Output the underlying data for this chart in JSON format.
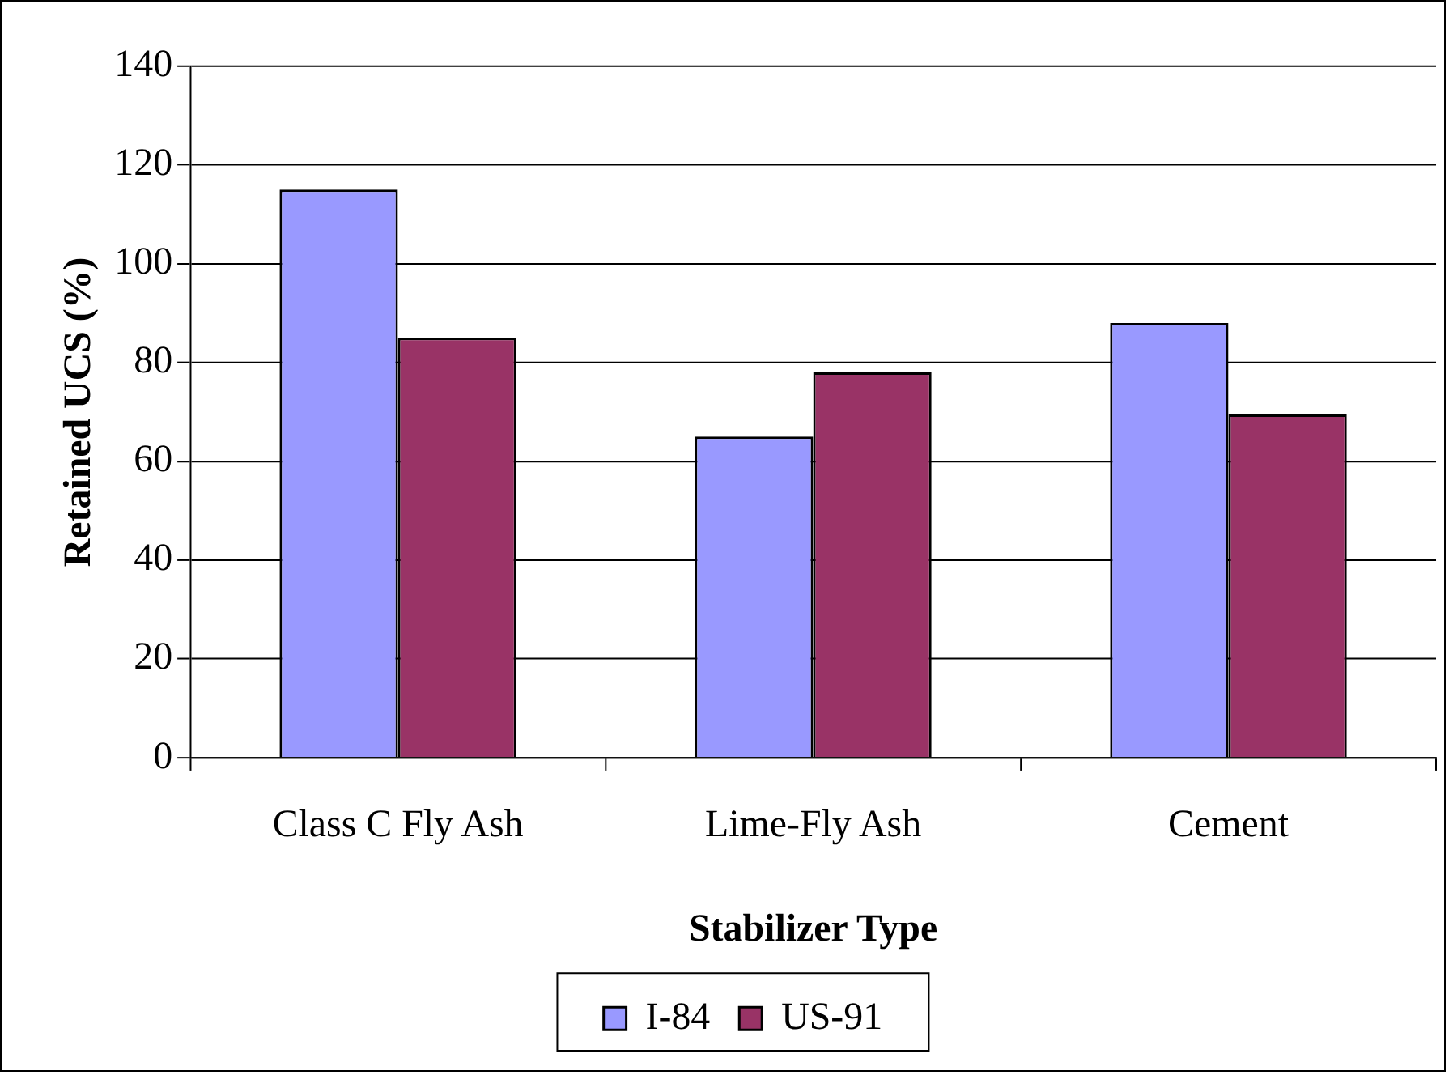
{
  "chart_data": {
    "type": "bar",
    "xlabel": "Stabilizer Type",
    "ylabel": "Retained UCS (%)",
    "categories": [
      "Class C Fly Ash",
      "Lime-Fly Ash",
      "Cement"
    ],
    "series": [
      {
        "name": "I-84",
        "color": "#9999ff",
        "values": [
          115,
          65,
          88
        ]
      },
      {
        "name": "US-91",
        "color": "#993366",
        "values": [
          85,
          78,
          69.5
        ]
      }
    ],
    "ylim": [
      0,
      140
    ],
    "yticks": [
      0,
      20,
      40,
      60,
      80,
      100,
      120,
      140
    ],
    "grid": "y",
    "legend": "bottom"
  }
}
